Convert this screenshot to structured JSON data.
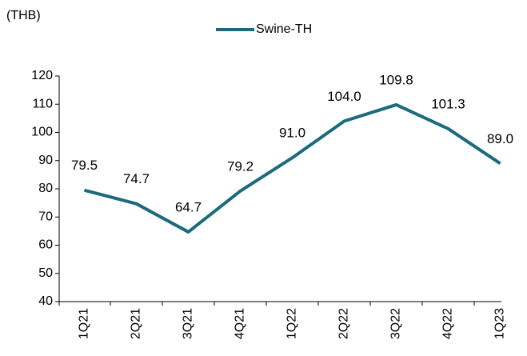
{
  "chart_data": {
    "type": "line",
    "y_unit_label": "(THB)",
    "categories": [
      "1Q21",
      "2Q21",
      "3Q21",
      "4Q21",
      "1Q22",
      "2Q22",
      "3Q22",
      "4Q22",
      "1Q23"
    ],
    "series": [
      {
        "name": "Swine-TH",
        "color": "#1b6a7e",
        "values": [
          79.5,
          74.7,
          64.7,
          79.2,
          91.0,
          104.0,
          109.8,
          101.3,
          89.0
        ],
        "value_labels": [
          "79.5",
          "74.7",
          "64.7",
          "79.2",
          "91.0",
          "104.0",
          "109.8",
          "101.3",
          "89.0"
        ]
      }
    ],
    "ylim": [
      40,
      120
    ],
    "yticks": [
      40,
      50,
      60,
      70,
      80,
      90,
      100,
      110,
      120
    ],
    "grid": false,
    "legend": "top"
  }
}
